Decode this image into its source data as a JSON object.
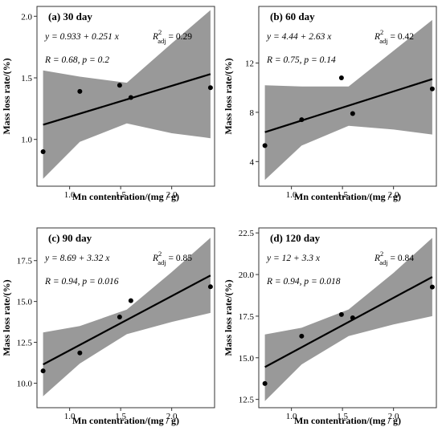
{
  "chart_data": [
    {
      "type": "scatter",
      "panel_label": "(a) 30 day",
      "equation": "y = 0.933 + 0.251 x",
      "r2_text": "R²adj = 0.29",
      "r2_label": "R",
      "r2_sup": "2",
      "r2_sub": "adj",
      "r2_value": " = 0.29",
      "r_p_text": "R = 0.68, p = 0.2",
      "xlabel": "Mn contentration/(mg / g)",
      "ylabel": "Mass loss rate/(%)",
      "xlim": [
        0.68,
        2.42
      ],
      "ylim": [
        0.62,
        2.08
      ],
      "xticks": [
        1.0,
        1.5,
        2.0
      ],
      "xtick_labels": [
        "1.0",
        "1.5",
        "2.0"
      ],
      "yticks": [
        1.0,
        1.5,
        2.0
      ],
      "ytick_labels": [
        "1.0",
        "1.5",
        "2.0"
      ],
      "points": [
        {
          "x": 0.74,
          "y": 0.9
        },
        {
          "x": 1.1,
          "y": 1.39
        },
        {
          "x": 1.49,
          "y": 1.44
        },
        {
          "x": 1.6,
          "y": 1.34
        },
        {
          "x": 2.38,
          "y": 1.42
        }
      ],
      "intercept": 0.933,
      "slope": 0.251,
      "band_lower": [
        [
          0.74,
          0.68
        ],
        [
          1.1,
          0.98
        ],
        [
          1.56,
          1.13
        ],
        [
          2.0,
          1.05
        ],
        [
          2.38,
          1.01
        ]
      ],
      "band_upper": [
        [
          0.74,
          1.56
        ],
        [
          1.1,
          1.51
        ],
        [
          1.56,
          1.46
        ],
        [
          2.0,
          1.78
        ],
        [
          2.38,
          2.05
        ]
      ]
    },
    {
      "type": "scatter",
      "panel_label": "(b) 60 day",
      "equation": "y = 4.44 + 2.63 x",
      "r2_text": "R²adj = 0.42",
      "r2_label": "R",
      "r2_sup": "2",
      "r2_sub": "adj",
      "r2_value": " = 0.42",
      "r_p_text": "R = 0.75, p = 0.14",
      "xlabel": "Mn contentration/(mg / g)",
      "ylabel": "Mass loss rate/(%)",
      "xlim": [
        0.68,
        2.42
      ],
      "ylim": [
        2.0,
        16.6
      ],
      "xticks": [
        1.0,
        1.5,
        2.0
      ],
      "xtick_labels": [
        "1.0",
        "1.5",
        "2.0"
      ],
      "yticks": [
        4,
        8,
        12
      ],
      "ytick_labels": [
        "4",
        "8",
        "12"
      ],
      "points": [
        {
          "x": 0.74,
          "y": 5.3
        },
        {
          "x": 1.1,
          "y": 7.4
        },
        {
          "x": 1.49,
          "y": 10.8
        },
        {
          "x": 1.6,
          "y": 7.9
        },
        {
          "x": 2.38,
          "y": 9.9
        }
      ],
      "intercept": 4.44,
      "slope": 2.63,
      "band_lower": [
        [
          0.74,
          2.5
        ],
        [
          1.1,
          5.3
        ],
        [
          1.56,
          6.9
        ],
        [
          2.0,
          6.6
        ],
        [
          2.38,
          6.2
        ]
      ],
      "band_upper": [
        [
          0.74,
          10.2
        ],
        [
          1.1,
          10.1
        ],
        [
          1.56,
          10.1
        ],
        [
          2.0,
          13.0
        ],
        [
          2.38,
          15.5
        ]
      ]
    },
    {
      "type": "scatter",
      "panel_label": "(c) 90 day",
      "equation": "y = 8.69 + 3.32 x",
      "r2_text": "R²adj = 0.85",
      "r2_label": "R",
      "r2_sup": "2",
      "r2_sub": "adj",
      "r2_value": " = 0.85",
      "r_p_text": "R = 0.94, p = 0.016",
      "xlabel": "Mn contentration/(mg / g)",
      "ylabel": "Mass loss rate/(%)",
      "xlim": [
        0.68,
        2.42
      ],
      "ylim": [
        8.5,
        19.5
      ],
      "xticks": [
        1.0,
        1.5,
        2.0
      ],
      "xtick_labels": [
        "1.0",
        "1.5",
        "2.0"
      ],
      "yticks": [
        10.0,
        12.5,
        15.0,
        17.5
      ],
      "ytick_labels": [
        "10.0",
        "12.5",
        "15.0",
        "17.5"
      ],
      "points": [
        {
          "x": 0.74,
          "y": 10.75
        },
        {
          "x": 1.1,
          "y": 11.85
        },
        {
          "x": 1.49,
          "y": 14.05
        },
        {
          "x": 1.6,
          "y": 15.05
        },
        {
          "x": 2.38,
          "y": 15.9
        }
      ],
      "intercept": 8.69,
      "slope": 3.32,
      "band_lower": [
        [
          0.74,
          9.2
        ],
        [
          1.1,
          11.2
        ],
        [
          1.56,
          13.0
        ],
        [
          2.0,
          13.75
        ],
        [
          2.38,
          14.3
        ]
      ],
      "band_upper": [
        [
          0.74,
          13.1
        ],
        [
          1.1,
          13.5
        ],
        [
          1.56,
          14.5
        ],
        [
          2.0,
          16.8
        ],
        [
          2.38,
          18.9
        ]
      ]
    },
    {
      "type": "scatter",
      "panel_label": "(d) 120 day",
      "equation": "y = 12 + 3.3 x",
      "r2_text": "R²adj = 0.84",
      "r2_label": "R",
      "r2_sup": "2",
      "r2_sub": "adj",
      "r2_value": " = 0.84",
      "r_p_text": "R = 0.94, p = 0.018",
      "xlabel": "Mn contentration/(mg / g)",
      "ylabel": "Mass loss rate/(%)",
      "xlim": [
        0.68,
        2.42
      ],
      "ylim": [
        12.0,
        22.8
      ],
      "xticks": [
        1.0,
        1.5,
        2.0
      ],
      "xtick_labels": [
        "1.0",
        "1.5",
        "2.0"
      ],
      "yticks": [
        12.5,
        15.0,
        17.5,
        20.0,
        22.5
      ],
      "ytick_labels": [
        "12.5",
        "15.0",
        "17.5",
        "20.0",
        "22.5"
      ],
      "points": [
        {
          "x": 0.74,
          "y": 13.45
        },
        {
          "x": 1.1,
          "y": 16.3
        },
        {
          "x": 1.49,
          "y": 17.6
        },
        {
          "x": 1.6,
          "y": 17.4
        },
        {
          "x": 2.38,
          "y": 19.25
        }
      ],
      "intercept": 12,
      "slope": 3.3,
      "band_lower": [
        [
          0.74,
          12.4
        ],
        [
          1.1,
          14.6
        ],
        [
          1.56,
          16.3
        ],
        [
          2.0,
          17.0
        ],
        [
          2.38,
          17.5
        ]
      ],
      "band_upper": [
        [
          0.74,
          16.4
        ],
        [
          1.1,
          16.8
        ],
        [
          1.56,
          17.9
        ],
        [
          2.0,
          20.1
        ],
        [
          2.38,
          22.2
        ]
      ]
    }
  ],
  "colors": {
    "band": "#999999",
    "line": "#000000",
    "point": "#000000",
    "frame": "#333333",
    "text": "#000000"
  }
}
